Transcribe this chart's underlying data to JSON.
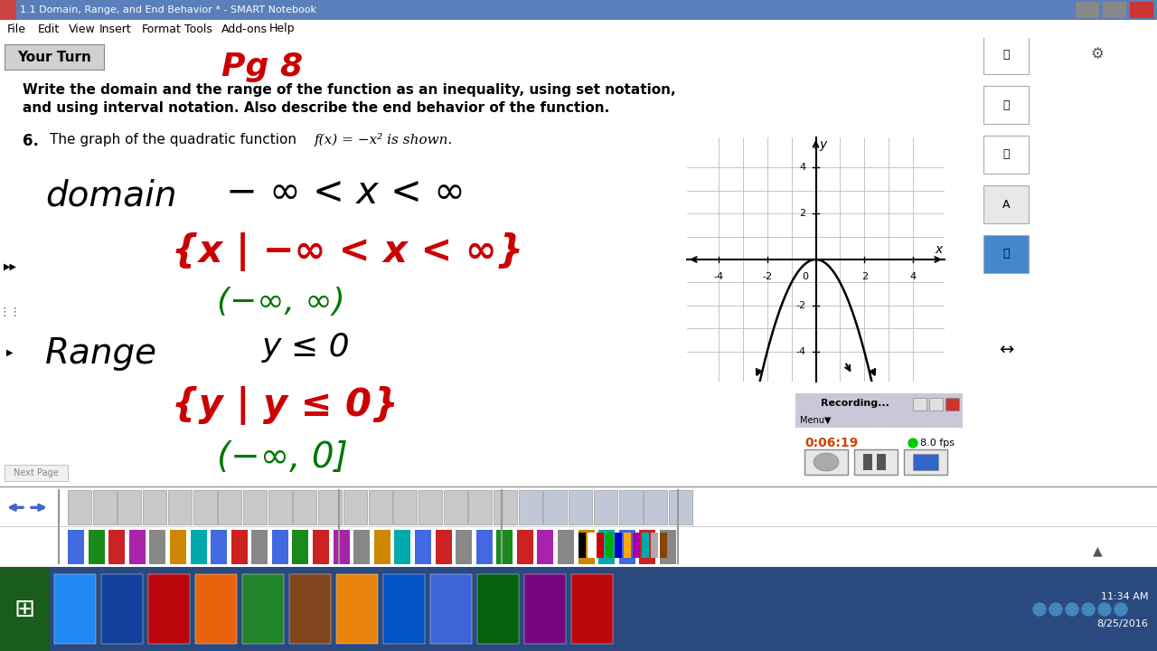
{
  "title_bar": "1.1 Domain, Range, and End Behavior * - SMART Notebook",
  "menu_items": [
    "File",
    "Edit",
    "View",
    "Insert",
    "Format",
    "Tools",
    "Add-ons",
    "Help"
  ],
  "your_turn_label": "Your Turn",
  "pg_label": "Pg 8",
  "instruction_line1": "Write the domain and the range of the function as an inequality, using set notation,",
  "instruction_line2": "and using interval notation. Also describe the end behavior of the function.",
  "problem_number": "6.",
  "problem_text": "The graph of the quadratic function",
  "function_text": "f(x) = −x² is shown.",
  "domain_label": "domain",
  "domain_inequality": "− ∞ < x < ∞",
  "domain_set_notation": "{x | −∞ < x < ∞}",
  "domain_interval": "(−∞, ∞)",
  "range_label": "Range",
  "range_inequality": "y ≤ 0",
  "range_set_notation": "{y | y ≤ 0}",
  "range_interval": "(−∞, 0]",
  "bg_color": "#ffffff",
  "titlebar_color": "#c8c8c8",
  "titlebar_blue": "#4a6fa5",
  "menu_bg": "#e8e8e8",
  "your_turn_bg": "#d0d0d0",
  "black_text": "#000000",
  "red_ink": "#cc0000",
  "green_ink": "#007700",
  "grid_color": "#bbbbbb",
  "graph_border": "#999999",
  "recording_time": "0:06:19",
  "recording_fps": "8.0 fps",
  "time_display": "11:34 AM",
  "date_display": "8/25/2016",
  "next_page": "Next Page"
}
